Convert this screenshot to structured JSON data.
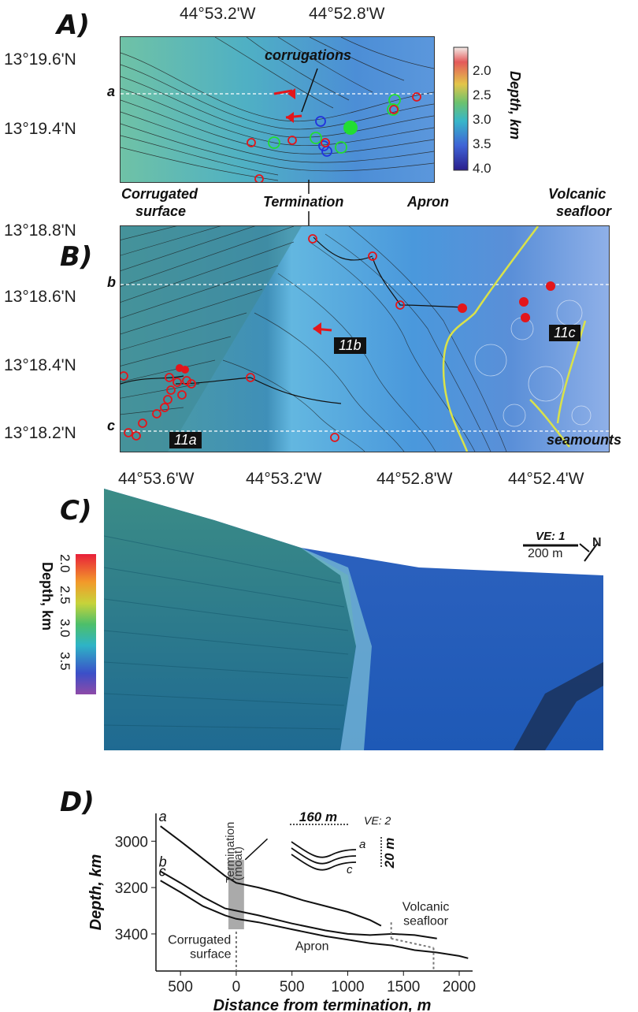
{
  "panels": {
    "a": "A)",
    "b": "B)",
    "c": "C)",
    "d": "D)"
  },
  "mapA": {
    "lon_ticks": [
      "44°53.2'W",
      "44°52.8'W"
    ],
    "lat_ticks": [
      "13°19.6'N",
      "13°19.4'N"
    ],
    "profile_label": "a",
    "annotation": "corrugations",
    "colorbar": {
      "title": "Depth, km",
      "ticks": [
        "2.0",
        "2.5",
        "3.0",
        "3.5",
        "4.0"
      ]
    }
  },
  "region_labels": {
    "corrugated": [
      "Corrugated",
      "surface"
    ],
    "termination": "Termination",
    "apron": "Apron",
    "volcanic": [
      "Volcanic",
      "seafloor"
    ]
  },
  "mapB": {
    "lat_ticks": [
      "13°18.8'N",
      "13°18.6'N",
      "13°18.4'N",
      "13°18.2'N"
    ],
    "lon_ticks": [
      "44°53.6'W",
      "44°53.2'W",
      "44°52.8'W",
      "44°52.4'W"
    ],
    "profile_labels": [
      "b",
      "c"
    ],
    "figure_refs": [
      "11a",
      "11b",
      "11c"
    ],
    "annotation": "seamounts"
  },
  "panelC": {
    "colorbar": {
      "title": "Depth, km",
      "ticks": [
        "2.0",
        "2.5",
        "3.0",
        "3.5"
      ]
    },
    "scale": {
      "ve": "VE: 1",
      "length": "200 m",
      "north": "N"
    }
  },
  "chart_data": {
    "type": "line",
    "xlabel": "Distance from termination, m",
    "ylabel": "Depth, km",
    "x_ticks": [
      "500",
      "0",
      "500",
      "1000",
      "1500",
      "2000"
    ],
    "y_ticks": [
      "3000",
      "3200",
      "3400"
    ],
    "xlim": [
      -720,
      2120
    ],
    "ylim": [
      3560,
      2880
    ],
    "series": [
      {
        "name": "a",
        "x": [
          -680,
          -500,
          -300,
          -100,
          0,
          200,
          400,
          600,
          800,
          1000,
          1200,
          1300
        ],
        "y": [
          2935,
          3000,
          3075,
          3150,
          3180,
          3200,
          3225,
          3255,
          3280,
          3305,
          3340,
          3365
        ]
      },
      {
        "name": "b",
        "x": [
          -680,
          -500,
          -300,
          -100,
          0,
          200,
          500,
          800,
          1000,
          1200,
          1400,
          1600,
          1800
        ],
        "y": [
          3130,
          3180,
          3240,
          3290,
          3300,
          3320,
          3355,
          3385,
          3400,
          3405,
          3400,
          3405,
          3420
        ]
      },
      {
        "name": "c",
        "x": [
          -680,
          -500,
          -300,
          -100,
          0,
          200,
          500,
          800,
          1000,
          1200,
          1400,
          1600,
          1800,
          2000,
          2080
        ],
        "y": [
          3170,
          3220,
          3280,
          3320,
          3335,
          3350,
          3380,
          3410,
          3425,
          3440,
          3450,
          3470,
          3480,
          3495,
          3505
        ]
      }
    ],
    "termination_label": [
      "Termination",
      "(moat)"
    ],
    "text_labels": {
      "corrugated": [
        "Corrugated",
        "surface"
      ],
      "apron": "Apron",
      "volcanic": [
        "Volcanic",
        "seafloor"
      ]
    },
    "inset": {
      "scale": "160 m",
      "ve": "VE: 2",
      "vscale": "20 m",
      "labels": [
        "a",
        "c"
      ]
    }
  }
}
